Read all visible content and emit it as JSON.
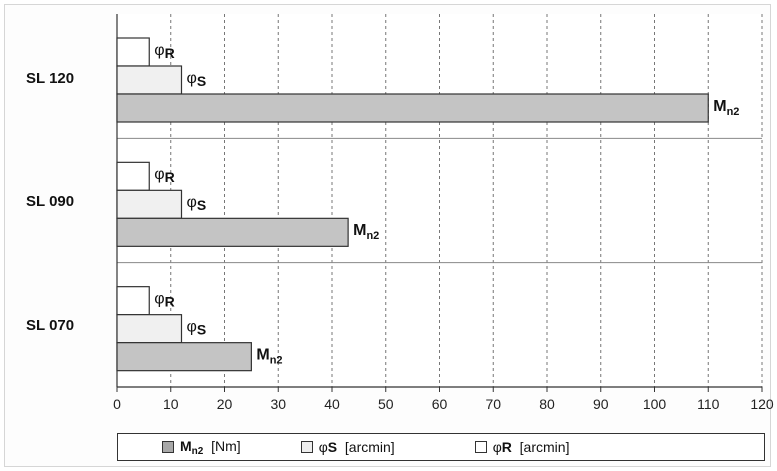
{
  "chart_data": {
    "type": "bar",
    "orientation": "horizontal",
    "categories": [
      "SL 120",
      "SL 090",
      "SL 070"
    ],
    "series": [
      {
        "name": "φR [arcmin]",
        "label_symbol": "φ",
        "label_sub": "R",
        "values": [
          6,
          6,
          6
        ],
        "color": "#ffffff"
      },
      {
        "name": "φS [arcmin]",
        "label_symbol": "φ",
        "label_sub": "S",
        "values": [
          12,
          12,
          12
        ],
        "color": "#f0f0f0"
      },
      {
        "name": "Mn2 [Nm]",
        "label_symbol": "M",
        "label_sub": "n2",
        "values": [
          110,
          43,
          25
        ],
        "color": "#c4c4c4"
      }
    ],
    "xlim": [
      0,
      120
    ],
    "xticks": [
      "0",
      "10",
      "20",
      "30",
      "40",
      "50",
      "60",
      "70",
      "80",
      "90",
      "100",
      "110",
      "120"
    ],
    "grid": "vertical dashed",
    "legend_position": "bottom",
    "legend": [
      {
        "symbol": "M",
        "sub": "n2",
        "unit": "[Nm]",
        "color": "#a8a8a8"
      },
      {
        "symbol": "φ",
        "sub": "S",
        "unit": "[arcmin]",
        "color": "#eeeeee"
      },
      {
        "symbol": "φ",
        "sub": "R",
        "unit": "[arcmin]",
        "color": "#ffffff"
      }
    ]
  }
}
